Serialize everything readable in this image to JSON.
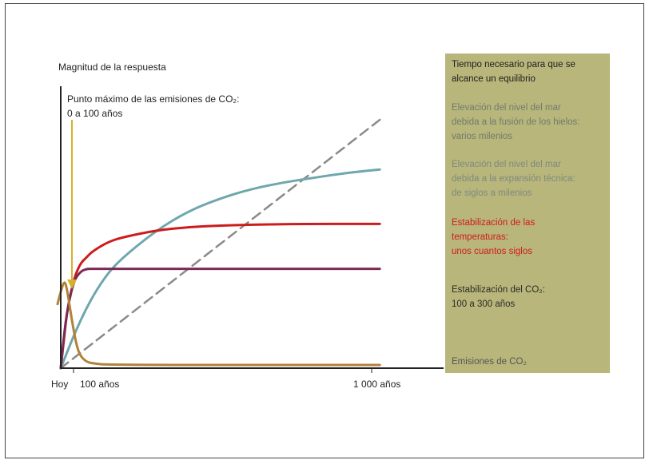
{
  "chart_data": {
    "type": "line",
    "ylabel": "Magnitud de la respuesta",
    "x_ticks": [
      "Hoy",
      "100 años",
      "1 000 años"
    ],
    "annotation": {
      "text": "Punto máximo de las emisiones de CO₂:\n0 a 100 años",
      "color": "#d4b22f"
    },
    "legend_title": "Tiempo necesario para que se\nalcance un equilibrio",
    "series": [
      {
        "key": "sea_ice",
        "name": "Elevación del nivel del mar\ndebida a la fusión de los hielos:\nvarios milenios",
        "color": "#8a8a8a",
        "dash": true,
        "label_color": "#6f7b6f",
        "points": [
          [
            0,
            0
          ],
          [
            1000,
            1.55
          ]
        ]
      },
      {
        "key": "sea_thermal",
        "name": "Elevación del nivel del mar\ndebida a la expansión técnica:\nde siglos a milenios",
        "color": "#6fa7ad",
        "label_color": "#7e8a7e",
        "points": [
          [
            0,
            0
          ],
          [
            50,
            0.25
          ],
          [
            100,
            0.45
          ],
          [
            150,
            0.6
          ],
          [
            200,
            0.7
          ],
          [
            300,
            0.86
          ],
          [
            400,
            0.98
          ],
          [
            500,
            1.06
          ],
          [
            600,
            1.12
          ],
          [
            700,
            1.16
          ],
          [
            800,
            1.19
          ],
          [
            900,
            1.22
          ],
          [
            1000,
            1.24
          ]
        ]
      },
      {
        "key": "temperature",
        "name": "Estabilización de las\ntemperaturas:\nunos cuantos siglos",
        "color": "#cc1c1c",
        "label_color": "#d31a1a",
        "points": [
          [
            0,
            0
          ],
          [
            10,
            0.18
          ],
          [
            20,
            0.36
          ],
          [
            40,
            0.55
          ],
          [
            60,
            0.65
          ],
          [
            80,
            0.69
          ],
          [
            100,
            0.73
          ],
          [
            150,
            0.79
          ],
          [
            200,
            0.82
          ],
          [
            300,
            0.86
          ],
          [
            400,
            0.88
          ],
          [
            500,
            0.89
          ],
          [
            700,
            0.9
          ],
          [
            1000,
            0.9
          ]
        ]
      },
      {
        "key": "co2",
        "name": "Estabilización del CO₂:\n100 a 300 años",
        "color": "#7a2a54",
        "label_color": "#2b2b2b",
        "points": [
          [
            0,
            0
          ],
          [
            10,
            0.2
          ],
          [
            20,
            0.36
          ],
          [
            40,
            0.54
          ],
          [
            60,
            0.6
          ],
          [
            80,
            0.62
          ],
          [
            100,
            0.62
          ],
          [
            1000,
            0.62
          ]
        ]
      },
      {
        "key": "emissions",
        "name": "Emisiones de CO₂",
        "color": "#b0823a",
        "label_color": "#555555",
        "points": [
          [
            -10,
            0.4
          ],
          [
            0,
            0.48
          ],
          [
            12,
            0.55
          ],
          [
            20,
            0.49
          ],
          [
            30,
            0.36
          ],
          [
            40,
            0.24
          ],
          [
            50,
            0.14
          ],
          [
            60,
            0.08
          ],
          [
            80,
            0.04
          ],
          [
            100,
            0.03
          ],
          [
            150,
            0.02
          ],
          [
            1000,
            0.02
          ]
        ]
      }
    ]
  }
}
